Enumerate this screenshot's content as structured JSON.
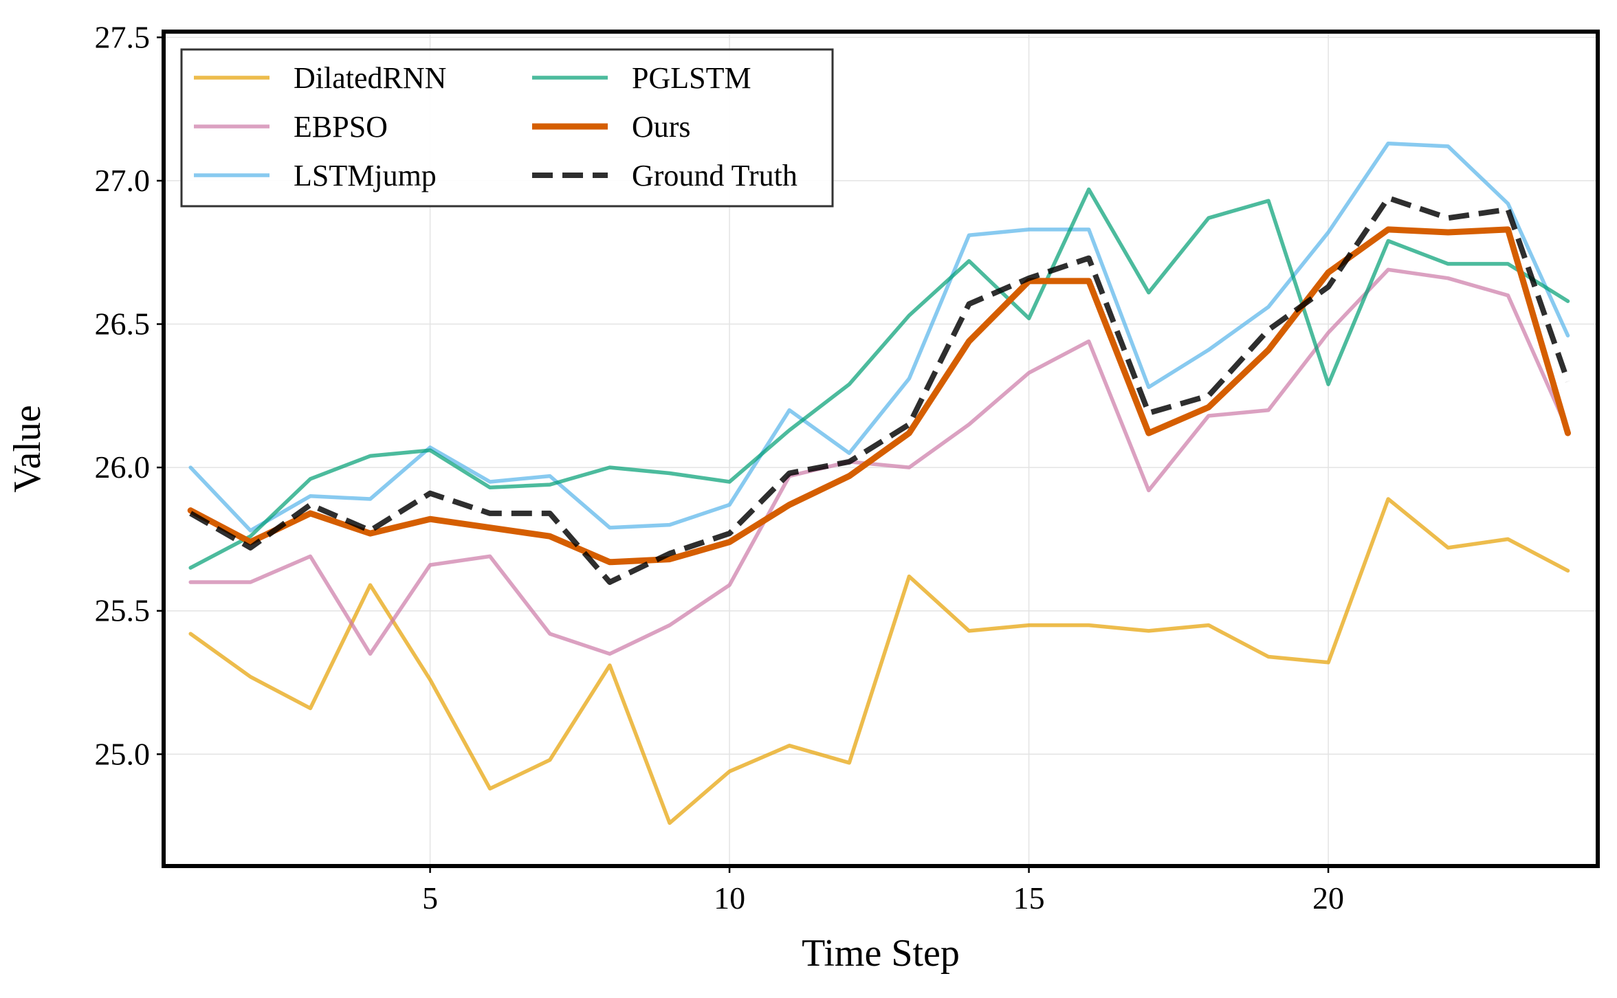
{
  "chart_data": {
    "type": "line",
    "title": "",
    "xlabel": "Time Step",
    "ylabel": "Value",
    "xlim": [
      0.55,
      24.5
    ],
    "ylim": [
      24.61,
      27.52
    ],
    "xticks": [
      5,
      10,
      15,
      20
    ],
    "xtick_labels": [
      "5",
      "10",
      "15",
      "20"
    ],
    "yticks": [
      25.0,
      25.5,
      26.0,
      26.5,
      27.0,
      27.5
    ],
    "ytick_labels": [
      "25.0",
      "25.5",
      "26.0",
      "26.5",
      "27.0",
      "27.5"
    ],
    "grid": true,
    "legend_position": "top-left",
    "legend_columns": 2,
    "x": [
      1,
      2,
      3,
      4,
      5,
      6,
      7,
      8,
      9,
      10,
      11,
      12,
      13,
      14,
      15,
      16,
      17,
      18,
      19,
      20,
      21,
      22,
      23,
      24
    ],
    "series": [
      {
        "name": "DilatedRNN",
        "color": "#E69F00",
        "style": "solid",
        "values": [
          25.42,
          25.27,
          25.16,
          25.59,
          25.26,
          24.88,
          24.98,
          25.31,
          24.76,
          24.94,
          25.03,
          24.97,
          25.62,
          25.43,
          25.45,
          25.45,
          25.43,
          25.45,
          25.34,
          25.32,
          25.89,
          25.72,
          25.75,
          25.64
        ]
      },
      {
        "name": "EBPSO",
        "color": "#CC79A7",
        "style": "solid",
        "values": [
          25.6,
          25.6,
          25.69,
          25.35,
          25.66,
          25.69,
          25.42,
          25.35,
          25.45,
          25.59,
          25.97,
          26.02,
          26.0,
          26.15,
          26.33,
          26.44,
          25.92,
          26.18,
          26.2,
          26.47,
          26.69,
          26.66,
          26.6,
          26.13
        ]
      },
      {
        "name": "LSTMjump",
        "color": "#56B4E9",
        "style": "solid",
        "values": [
          26.0,
          25.78,
          25.9,
          25.89,
          26.07,
          25.95,
          25.97,
          25.79,
          25.8,
          25.87,
          26.2,
          26.05,
          26.31,
          26.81,
          26.83,
          26.83,
          26.28,
          26.41,
          26.56,
          26.82,
          27.13,
          27.12,
          26.92,
          26.46
        ]
      },
      {
        "name": "PGLSTM",
        "color": "#009E73",
        "style": "solid",
        "values": [
          25.65,
          25.76,
          25.96,
          26.04,
          26.06,
          25.93,
          25.94,
          26.0,
          25.98,
          25.95,
          26.13,
          26.29,
          26.53,
          26.72,
          26.52,
          26.97,
          26.61,
          26.87,
          26.93,
          26.29,
          26.79,
          26.71,
          26.71,
          26.58
        ]
      },
      {
        "name": "Ours",
        "color": "#D55E00",
        "style": "solid",
        "values": [
          25.85,
          25.74,
          25.84,
          25.77,
          25.82,
          25.79,
          25.76,
          25.67,
          25.68,
          25.74,
          25.87,
          25.97,
          26.12,
          26.44,
          26.65,
          26.65,
          26.12,
          26.21,
          26.41,
          26.68,
          26.83,
          26.82,
          26.83,
          26.12
        ]
      },
      {
        "name": "Ground Truth",
        "color": "#000000",
        "style": "dashed",
        "values": [
          25.84,
          25.72,
          25.87,
          25.78,
          25.91,
          25.84,
          25.84,
          25.6,
          25.7,
          25.77,
          25.98,
          26.02,
          26.15,
          26.57,
          26.66,
          26.73,
          26.19,
          26.25,
          26.48,
          26.63,
          26.94,
          26.87,
          26.9,
          26.3
        ]
      }
    ]
  }
}
